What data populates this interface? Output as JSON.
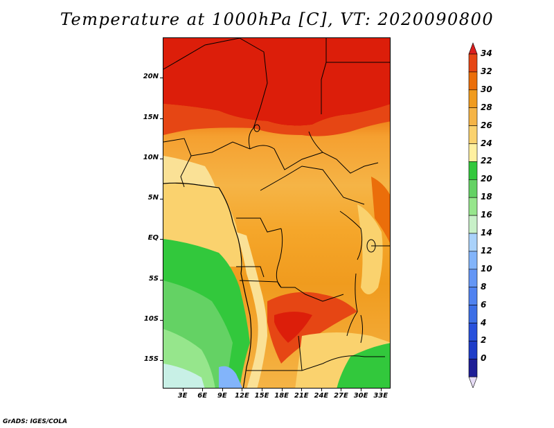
{
  "title": "Temperature at 1000hPa [C], VT: 2020090800",
  "credit": "GrADS: IGES/COLA",
  "y_axis": {
    "ticks": [
      "20N",
      "15N",
      "10N",
      "5N",
      "EQ",
      "5S",
      "10S",
      "15S"
    ],
    "lat_values": [
      20,
      15,
      10,
      5,
      0,
      -5,
      -10,
      -15
    ]
  },
  "x_axis": {
    "ticks": [
      "3E",
      "6E",
      "9E",
      "12E",
      "15E",
      "18E",
      "21E",
      "24E",
      "27E",
      "30E",
      "33E"
    ],
    "lon_values": [
      3,
      6,
      9,
      12,
      15,
      18,
      21,
      24,
      27,
      30,
      33
    ]
  },
  "map_extent": {
    "lon": [
      0,
      34.5
    ],
    "lat": [
      -18.5,
      25
    ]
  },
  "colorbar": {
    "labels": [
      "0",
      "2",
      "4",
      "6",
      "8",
      "10",
      "12",
      "14",
      "16",
      "18",
      "20",
      "22",
      "24",
      "26",
      "28",
      "30",
      "32",
      "34"
    ],
    "colors": [
      "#1e1e96",
      "#1e3cc8",
      "#2850dc",
      "#3c6ee6",
      "#5082f0",
      "#6496f5",
      "#82b4fa",
      "#aad2fa",
      "#c8f0c8",
      "#96e68c",
      "#64d264",
      "#32c83c",
      "#fff0a0",
      "#fad26e",
      "#f5b446",
      "#f09b1e",
      "#eb6e0a",
      "#e64614",
      "#dc1e1e"
    ],
    "under_color": "#e6dcf5",
    "over_color": "#dc1e1e"
  }
}
